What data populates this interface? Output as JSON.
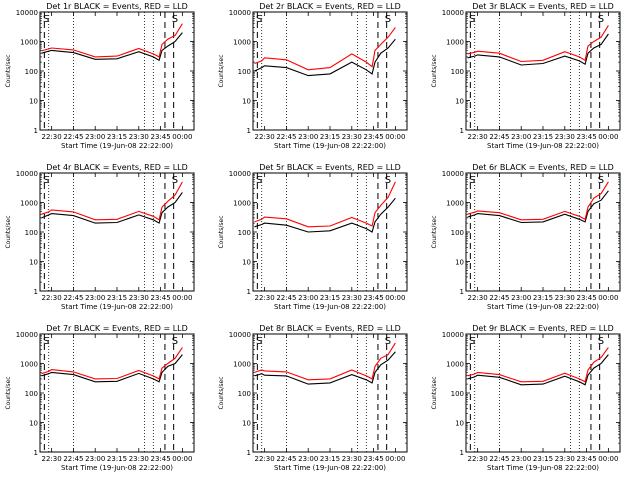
{
  "chart_data": [
    {
      "type": "line",
      "title": "Det 1r BLACK = Events, RED = LLD",
      "xlabel": "Start Time (19-Jun-08 22:22:00)",
      "ylabel": "Counts/sec",
      "x_ticks": [
        "22:30",
        "22:45",
        "23:00",
        "23:15",
        "23:30",
        "23:45",
        "00:00"
      ],
      "y_ticks": [
        "1",
        "10",
        "100",
        "1000",
        "10000"
      ],
      "ylim": [
        1,
        10000
      ],
      "y_scale": "log",
      "markers": [
        "S",
        "S"
      ],
      "series": [
        {
          "name": "Events",
          "color": "#000000",
          "time": [
            "22:23",
            "22:28",
            "22:30",
            "22:45",
            "23:00",
            "23:15",
            "23:30",
            "23:40",
            "23:44",
            "23:46",
            "23:50",
            "23:55",
            "00:00"
          ],
          "values": [
            400,
            470,
            500,
            420,
            250,
            260,
            450,
            300,
            230,
            500,
            700,
            1000,
            2000
          ]
        },
        {
          "name": "LLD",
          "color": "#ff0000",
          "time": [
            "22:23",
            "22:28",
            "22:30",
            "22:45",
            "23:00",
            "23:15",
            "23:30",
            "23:40",
            "23:44",
            "23:46",
            "23:50",
            "23:55",
            "00:00"
          ],
          "values": [
            480,
            560,
            600,
            520,
            300,
            320,
            580,
            380,
            300,
            800,
            1200,
            1600,
            4000
          ]
        }
      ]
    },
    {
      "type": "line",
      "title": "Det 2r BLACK = Events, RED = LLD",
      "xlabel": "Start Time (19-Jun-08 22:22:00)",
      "ylabel": "Counts/sec",
      "x_ticks": [
        "22:30",
        "22:45",
        "23:00",
        "23:15",
        "23:30",
        "23:45",
        "00:00"
      ],
      "y_ticks": [
        "1",
        "10",
        "100",
        "1000",
        "10000"
      ],
      "ylim": [
        1,
        10000
      ],
      "y_scale": "log",
      "markers": [
        "S",
        "S"
      ],
      "series": [
        {
          "name": "Events",
          "color": "#000000",
          "time": [
            "22:23",
            "22:28",
            "22:30",
            "22:45",
            "23:00",
            "23:15",
            "23:30",
            "23:40",
            "23:44",
            "23:46",
            "23:50",
            "23:55",
            "00:00"
          ],
          "values": [
            100,
            130,
            150,
            130,
            70,
            80,
            200,
            110,
            80,
            200,
            400,
            600,
            1200
          ]
        },
        {
          "name": "LLD",
          "color": "#ff0000",
          "time": [
            "22:23",
            "22:28",
            "22:30",
            "22:45",
            "23:00",
            "23:15",
            "23:30",
            "23:40",
            "23:44",
            "23:46",
            "23:50",
            "23:55",
            "00:00"
          ],
          "values": [
            180,
            220,
            280,
            240,
            110,
            130,
            380,
            200,
            140,
            500,
            800,
            1400,
            3000
          ]
        }
      ]
    },
    {
      "type": "line",
      "title": "Det 3r BLACK = Events, RED = LLD",
      "xlabel": "Start Time (19-Jun-08 22:22:00)",
      "ylabel": "Counts/sec",
      "x_ticks": [
        "22:30",
        "22:45",
        "23:00",
        "23:15",
        "23:30",
        "23:45",
        "00:00"
      ],
      "y_ticks": [
        "1",
        "10",
        "100",
        "1000",
        "10000"
      ],
      "ylim": [
        1,
        10000
      ],
      "y_scale": "log",
      "markers": [
        "S",
        "S"
      ],
      "series": [
        {
          "name": "Events",
          "color": "#000000",
          "time": [
            "22:23",
            "22:28",
            "22:30",
            "22:45",
            "23:00",
            "23:15",
            "23:30",
            "23:40",
            "23:44",
            "23:46",
            "23:50",
            "23:55",
            "00:00"
          ],
          "values": [
            280,
            320,
            350,
            300,
            160,
            180,
            320,
            220,
            170,
            400,
            600,
            800,
            1800
          ]
        },
        {
          "name": "LLD",
          "color": "#ff0000",
          "time": [
            "22:23",
            "22:28",
            "22:30",
            "22:45",
            "23:00",
            "23:15",
            "23:30",
            "23:40",
            "23:44",
            "23:46",
            "23:50",
            "23:55",
            "00:00"
          ],
          "values": [
            380,
            430,
            470,
            400,
            210,
            230,
            450,
            300,
            230,
            700,
            1000,
            1400,
            3500
          ]
        }
      ]
    },
    {
      "type": "line",
      "title": "Det 4r BLACK = Events, RED = LLD",
      "xlabel": "Start Time (19-Jun-08 22:22:00)",
      "ylabel": "Counts/sec",
      "x_ticks": [
        "22:30",
        "22:45",
        "23:00",
        "23:15",
        "23:30",
        "23:45",
        "00:00"
      ],
      "y_ticks": [
        "1",
        "10",
        "100",
        "1000",
        "10000"
      ],
      "ylim": [
        1,
        10000
      ],
      "y_scale": "log",
      "markers": [
        "S",
        "S"
      ],
      "series": [
        {
          "name": "Events",
          "color": "#000000",
          "time": [
            "22:23",
            "22:28",
            "22:30",
            "22:45",
            "23:00",
            "23:15",
            "23:30",
            "23:40",
            "23:44",
            "23:46",
            "23:50",
            "23:55",
            "00:00"
          ],
          "values": [
            300,
            380,
            420,
            360,
            200,
            210,
            380,
            260,
            200,
            450,
            700,
            1000,
            2200
          ]
        },
        {
          "name": "LLD",
          "color": "#ff0000",
          "time": [
            "22:23",
            "22:28",
            "22:30",
            "22:45",
            "23:00",
            "23:15",
            "23:30",
            "23:40",
            "23:44",
            "23:46",
            "23:50",
            "23:55",
            "00:00"
          ],
          "values": [
            400,
            480,
            560,
            480,
            260,
            270,
            500,
            340,
            260,
            700,
            1100,
            1800,
            5000
          ]
        }
      ]
    },
    {
      "type": "line",
      "title": "Det 5r BLACK = Events, RED = LLD",
      "xlabel": "Start Time (19-Jun-08 22:22:00)",
      "ylabel": "Counts/sec",
      "x_ticks": [
        "22:30",
        "22:45",
        "23:00",
        "23:15",
        "23:30",
        "23:45",
        "00:00"
      ],
      "y_ticks": [
        "1",
        "10",
        "100",
        "1000",
        "10000"
      ],
      "ylim": [
        1,
        10000
      ],
      "y_scale": "log",
      "markers": [
        "S",
        "S"
      ],
      "series": [
        {
          "name": "Events",
          "color": "#000000",
          "time": [
            "22:23",
            "22:28",
            "22:30",
            "22:45",
            "23:00",
            "23:15",
            "23:30",
            "23:40",
            "23:44",
            "23:46",
            "23:50",
            "23:55",
            "00:00"
          ],
          "values": [
            150,
            180,
            200,
            170,
            100,
            110,
            200,
            130,
            100,
            220,
            400,
            700,
            1400
          ]
        },
        {
          "name": "LLD",
          "color": "#ff0000",
          "time": [
            "22:23",
            "22:28",
            "22:30",
            "22:45",
            "23:00",
            "23:15",
            "23:30",
            "23:40",
            "23:44",
            "23:46",
            "23:50",
            "23:55",
            "00:00"
          ],
          "values": [
            220,
            270,
            320,
            280,
            150,
            160,
            310,
            200,
            160,
            450,
            800,
            1500,
            5000
          ]
        }
      ]
    },
    {
      "type": "line",
      "title": "Det 6r BLACK = Events, RED = LLD",
      "xlabel": "Start Time (19-Jun-08 22:22:00)",
      "ylabel": "Counts/sec",
      "x_ticks": [
        "22:30",
        "22:45",
        "23:00",
        "23:15",
        "23:30",
        "23:45",
        "00:00"
      ],
      "y_ticks": [
        "1",
        "10",
        "100",
        "1000",
        "10000"
      ],
      "ylim": [
        1,
        10000
      ],
      "y_scale": "log",
      "markers": [
        "S",
        "S"
      ],
      "series": [
        {
          "name": "Events",
          "color": "#000000",
          "time": [
            "22:23",
            "22:28",
            "22:30",
            "22:45",
            "23:00",
            "23:15",
            "23:30",
            "23:40",
            "23:44",
            "23:46",
            "23:50",
            "23:55",
            "00:00"
          ],
          "values": [
            320,
            380,
            420,
            360,
            210,
            220,
            400,
            270,
            220,
            500,
            900,
            1200,
            2500
          ]
        },
        {
          "name": "LLD",
          "color": "#ff0000",
          "time": [
            "22:23",
            "22:28",
            "22:30",
            "22:45",
            "23:00",
            "23:15",
            "23:30",
            "23:40",
            "23:44",
            "23:46",
            "23:50",
            "23:55",
            "00:00"
          ],
          "values": [
            400,
            470,
            520,
            450,
            260,
            270,
            500,
            340,
            270,
            700,
            1400,
            2000,
            5000
          ]
        }
      ]
    },
    {
      "type": "line",
      "title": "Det 7r BLACK = Events, RED = LLD",
      "xlabel": "Start Time (19-Jun-08 22:22:00)",
      "ylabel": "Counts/sec",
      "x_ticks": [
        "22:30",
        "22:45",
        "23:00",
        "23:15",
        "23:30",
        "23:45",
        "00:00"
      ],
      "y_ticks": [
        "1",
        "10",
        "100",
        "1000",
        "10000"
      ],
      "ylim": [
        1,
        10000
      ],
      "y_scale": "log",
      "markers": [
        "S",
        "S"
      ],
      "series": [
        {
          "name": "Events",
          "color": "#000000",
          "time": [
            "22:23",
            "22:28",
            "22:30",
            "22:45",
            "23:00",
            "23:15",
            "23:30",
            "23:40",
            "23:44",
            "23:46",
            "23:50",
            "23:55",
            "00:00"
          ],
          "values": [
            380,
            450,
            500,
            420,
            240,
            250,
            460,
            300,
            240,
            500,
            800,
            1000,
            2000
          ]
        },
        {
          "name": "LLD",
          "color": "#ff0000",
          "time": [
            "22:23",
            "22:28",
            "22:30",
            "22:45",
            "23:00",
            "23:15",
            "23:30",
            "23:40",
            "23:44",
            "23:46",
            "23:50",
            "23:55",
            "00:00"
          ],
          "values": [
            450,
            540,
            620,
            520,
            300,
            310,
            580,
            380,
            300,
            700,
            1000,
            1500,
            3500
          ]
        }
      ]
    },
    {
      "type": "line",
      "title": "Det 8r BLACK = Events, RED = LLD",
      "xlabel": "Start Time (19-Jun-08 22:22:00)",
      "ylabel": "Counts/sec",
      "x_ticks": [
        "22:30",
        "22:45",
        "23:00",
        "23:15",
        "23:30",
        "23:45",
        "00:00"
      ],
      "y_ticks": [
        "1",
        "10",
        "100",
        "1000",
        "10000"
      ],
      "ylim": [
        1,
        10000
      ],
      "y_scale": "log",
      "markers": [
        "S",
        "S"
      ],
      "series": [
        {
          "name": "Events",
          "color": "#000000",
          "time": [
            "22:23",
            "22:28",
            "22:30",
            "22:45",
            "23:00",
            "23:15",
            "23:30",
            "23:40",
            "23:44",
            "23:46",
            "23:50",
            "23:55",
            "00:00"
          ],
          "values": [
            380,
            450,
            400,
            380,
            200,
            220,
            420,
            280,
            220,
            500,
            900,
            1300,
            2500
          ]
        },
        {
          "name": "LLD",
          "color": "#ff0000",
          "time": [
            "22:23",
            "22:28",
            "22:30",
            "22:45",
            "23:00",
            "23:15",
            "23:30",
            "23:40",
            "23:44",
            "23:46",
            "23:50",
            "23:55",
            "00:00"
          ],
          "values": [
            500,
            600,
            560,
            520,
            280,
            300,
            600,
            380,
            300,
            800,
            1500,
            2000,
            5000
          ]
        }
      ]
    },
    {
      "type": "line",
      "title": "Det 9r BLACK = Events, RED = LLD",
      "xlabel": "Start Time (19-Jun-08 22:22:00)",
      "ylabel": "Counts/sec",
      "x_ticks": [
        "22:30",
        "22:45",
        "23:00",
        "23:15",
        "23:30",
        "23:45",
        "00:00"
      ],
      "y_ticks": [
        "1",
        "10",
        "100",
        "1000",
        "10000"
      ],
      "ylim": [
        1,
        10000
      ],
      "y_scale": "log",
      "markers": [
        "S",
        "S"
      ],
      "series": [
        {
          "name": "Events",
          "color": "#000000",
          "time": [
            "22:23",
            "22:28",
            "22:30",
            "22:45",
            "23:00",
            "23:15",
            "23:30",
            "23:40",
            "23:44",
            "23:46",
            "23:50",
            "23:55",
            "00:00"
          ],
          "values": [
            300,
            350,
            400,
            340,
            190,
            200,
            370,
            240,
            190,
            400,
            700,
            1000,
            2000
          ]
        },
        {
          "name": "LLD",
          "color": "#ff0000",
          "time": [
            "22:23",
            "22:28",
            "22:30",
            "22:45",
            "23:00",
            "23:15",
            "23:30",
            "23:40",
            "23:44",
            "23:46",
            "23:50",
            "23:55",
            "00:00"
          ],
          "values": [
            380,
            440,
            500,
            420,
            240,
            250,
            470,
            300,
            240,
            600,
            1100,
            1600,
            3500
          ]
        }
      ]
    }
  ]
}
